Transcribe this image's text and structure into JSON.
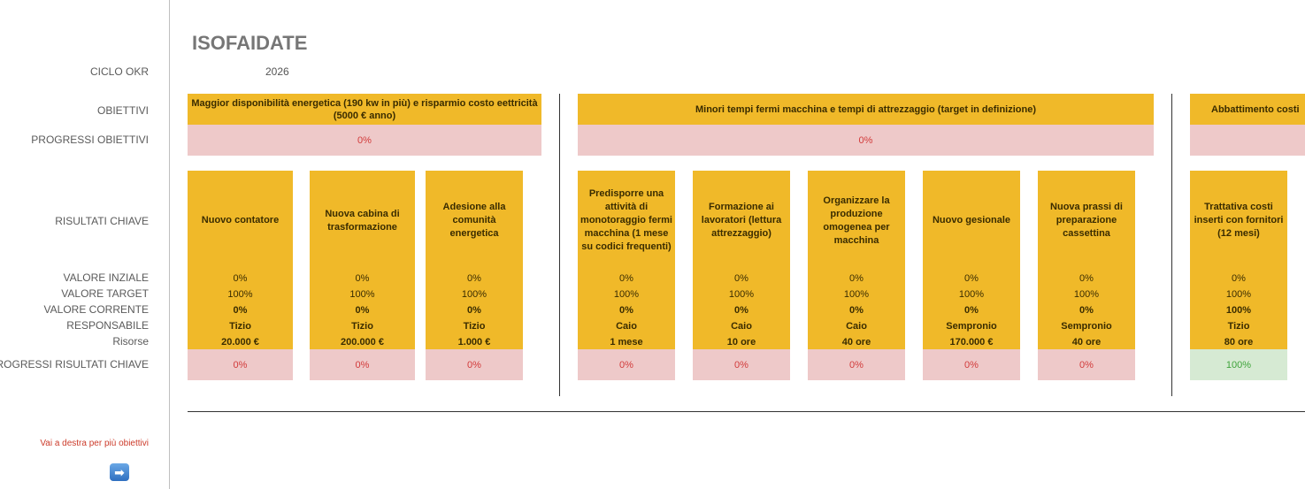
{
  "title": "ISOFAIDATE",
  "labels": {
    "ciclo": "CICLO OKR",
    "obiettivi": "OBIETTIVI",
    "progressi_obiettivi": "PROGRESSI OBIETTIVI",
    "risultati": "RISULTATI CHIAVE",
    "valore_iniziale": "VALORE INZIALE",
    "valore_target": "VALORE TARGET",
    "valore_corrente": "VALORE CORRENTE",
    "responsabile": "RESPONSABILE",
    "risorse": "Risorse",
    "progressi_risultati": "PROGRESSI RISULTATI CHIAVE"
  },
  "cycle_year": "2026",
  "hint": "Vai a destra per più obiettivi",
  "arrow_icon": "➡",
  "objectives": [
    {
      "title": "Maggior disponibilità energetica (190 kw in più) e risparmio costo eettricità (5000 € anno)",
      "progress": "0%"
    },
    {
      "title": "Minori tempi fermi macchina e tempi di attrezzaggio (target in definizione)",
      "progress": "0%"
    },
    {
      "title": "Abbattimento costi",
      "progress": ""
    }
  ],
  "key_results": [
    {
      "name": "Nuovo contatore",
      "initial": "0%",
      "target": "100%",
      "current": "0%",
      "owner": "Tizio",
      "resources": "20.000 €",
      "progress": "0%"
    },
    {
      "name": "Nuova cabina di trasformazione",
      "initial": "0%",
      "target": "100%",
      "current": "0%",
      "owner": "Tizio",
      "resources": "200.000 €",
      "progress": "0%"
    },
    {
      "name": "Adesione alla comunità energetica",
      "initial": "0%",
      "target": "100%",
      "current": "0%",
      "owner": "Tizio",
      "resources": "1.000 €",
      "progress": "0%"
    },
    {
      "name": "Predisporre una attività di monotoraggio fermi macchina (1 mese su codici frequenti)",
      "initial": "0%",
      "target": "100%",
      "current": "0%",
      "owner": "Caio",
      "resources": "1 mese",
      "progress": "0%"
    },
    {
      "name": "Formazione ai lavoratori (lettura attrezzaggio)",
      "initial": "0%",
      "target": "100%",
      "current": "0%",
      "owner": "Caio",
      "resources": "10 ore",
      "progress": "0%"
    },
    {
      "name": "Organizzare la produzione omogenea per macchina",
      "initial": "0%",
      "target": "100%",
      "current": "0%",
      "owner": "Caio",
      "resources": "40 ore",
      "progress": "0%"
    },
    {
      "name": "Nuovo gesionale",
      "initial": "0%",
      "target": "100%",
      "current": "0%",
      "owner": "Sempronio",
      "resources": "170.000 €",
      "progress": "0%"
    },
    {
      "name": "Nuova prassi di preparazione cassettina",
      "initial": "0%",
      "target": "100%",
      "current": "0%",
      "owner": "Sempronio",
      "resources": "40 ore",
      "progress": "0%"
    },
    {
      "name": "Trattativa costi inserti con fornitori (12 mesi)",
      "initial": "0%",
      "target": "100%",
      "current": "100%",
      "owner": "Tizio",
      "resources": "80 ore",
      "progress": "100%"
    }
  ]
}
